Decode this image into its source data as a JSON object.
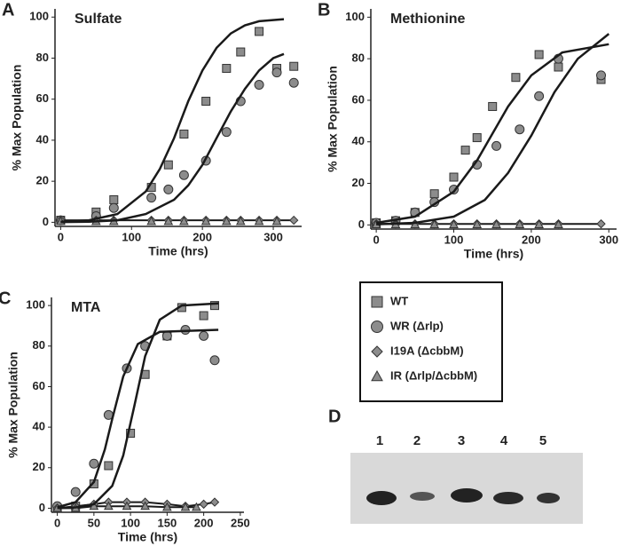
{
  "chart_data": [
    {
      "type": "scatter",
      "panel": "A",
      "title": "Sulfate",
      "xlabel": "Time (hrs)",
      "ylabel": "% Max Population",
      "xlim": [
        -8,
        340
      ],
      "ylim": [
        -2,
        104
      ],
      "xticks": [
        0,
        100,
        200,
        300
      ],
      "yticks": [
        0,
        20,
        40,
        60,
        80,
        100
      ],
      "series": [
        {
          "marker": "square",
          "x": [
            0,
            50,
            75,
            128,
            152,
            174,
            205,
            234,
            254,
            280,
            305,
            329
          ],
          "values": [
            1,
            5,
            11,
            17,
            28,
            43,
            59,
            75,
            83,
            93,
            75,
            76
          ]
        },
        {
          "marker": "circle",
          "x": [
            0,
            50,
            75,
            128,
            152,
            174,
            205,
            234,
            254,
            280,
            305,
            329
          ],
          "values": [
            1,
            3,
            7,
            12,
            16,
            23,
            30,
            44,
            59,
            67,
            73,
            68
          ]
        },
        {
          "marker": "diamond",
          "line": true,
          "x": [
            0,
            50,
            75,
            128,
            152,
            174,
            205,
            234,
            254,
            280,
            305,
            329
          ],
          "values": [
            1,
            1,
            1,
            1,
            1,
            1,
            1,
            1,
            1,
            1,
            1,
            1
          ]
        },
        {
          "marker": "triangle",
          "x": [
            0,
            50,
            75,
            128,
            152,
            174,
            205,
            234,
            254,
            280,
            305
          ],
          "values": [
            0.5,
            0.5,
            0.5,
            0.5,
            0.5,
            0.5,
            0.5,
            0.5,
            0.5,
            0.5,
            0.5
          ]
        },
        {
          "line": true,
          "x": [
            0,
            40,
            80,
            120,
            140,
            160,
            180,
            200,
            220,
            240,
            260,
            280,
            315
          ],
          "values": [
            0.3,
            1,
            4,
            15,
            26,
            41,
            59,
            74,
            85,
            92,
            96,
            98,
            99
          ]
        },
        {
          "line": true,
          "x": [
            0,
            40,
            80,
            120,
            160,
            180,
            200,
            220,
            240,
            260,
            280,
            300,
            315
          ],
          "values": [
            0.1,
            0.3,
            1,
            4,
            11,
            18,
            28,
            41,
            54,
            65,
            74,
            80,
            82
          ]
        }
      ]
    },
    {
      "type": "scatter",
      "panel": "B",
      "title": "Methionine",
      "xlabel": "Time (hrs)",
      "ylabel": "% Max Population",
      "xlim": [
        -7,
        310
      ],
      "ylim": [
        -2,
        104
      ],
      "xticks": [
        0,
        100,
        200,
        300
      ],
      "yticks": [
        0,
        20,
        40,
        60,
        80,
        100
      ],
      "series": [
        {
          "marker": "square",
          "x": [
            0,
            25,
            50,
            75,
            100,
            115,
            130,
            150,
            180,
            210,
            235,
            290
          ],
          "values": [
            1,
            2,
            6,
            15,
            23,
            36,
            42,
            57,
            71,
            82,
            76,
            70
          ]
        },
        {
          "marker": "circle",
          "x": [
            0,
            25,
            50,
            75,
            100,
            130,
            155,
            185,
            210,
            235,
            290
          ],
          "values": [
            1,
            2,
            6,
            11,
            17,
            29,
            38,
            46,
            62,
            80,
            72
          ]
        },
        {
          "marker": "diamond",
          "line": true,
          "x": [
            0,
            25,
            50,
            75,
            100,
            130,
            155,
            185,
            210,
            235,
            290
          ],
          "values": [
            0.5,
            0.5,
            0.5,
            0.5,
            0.5,
            0.5,
            0.5,
            0.5,
            0.5,
            0.5,
            0.5
          ]
        },
        {
          "marker": "triangle",
          "x": [
            0,
            25,
            50,
            75,
            100,
            130,
            155,
            185,
            210,
            235
          ],
          "values": [
            0.2,
            0.2,
            0.2,
            0.2,
            0.2,
            0.2,
            0.2,
            0.2,
            0.2,
            0.2
          ]
        },
        {
          "line": true,
          "x": [
            0,
            50,
            100,
            130,
            150,
            170,
            200,
            240,
            300
          ],
          "values": [
            1,
            4,
            16,
            31,
            44,
            57,
            72,
            83,
            87
          ]
        },
        {
          "line": true,
          "x": [
            0,
            50,
            100,
            140,
            170,
            200,
            230,
            260,
            300
          ],
          "values": [
            0.3,
            1,
            4,
            12,
            25,
            43,
            64,
            80,
            92
          ]
        }
      ]
    },
    {
      "type": "scatter",
      "panel": "C",
      "title": "MTA",
      "xlabel": "Time (hrs)",
      "ylabel": "% Max Population",
      "xlim": [
        -8,
        255
      ],
      "ylim": [
        -2,
        104
      ],
      "xticks": [
        0,
        50,
        100,
        150,
        200,
        250
      ],
      "yticks": [
        0,
        20,
        40,
        60,
        80,
        100
      ],
      "series": [
        {
          "marker": "square",
          "x": [
            0,
            25,
            50,
            70,
            100,
            120,
            150,
            170,
            200,
            215
          ],
          "values": [
            0,
            1,
            12,
            21,
            37,
            66,
            85,
            99,
            95,
            100
          ]
        },
        {
          "marker": "circle",
          "x": [
            0,
            25,
            50,
            70,
            95,
            120,
            150,
            175,
            200,
            215
          ],
          "values": [
            1,
            8,
            22,
            46,
            69,
            80,
            85,
            88,
            85,
            73
          ]
        },
        {
          "marker": "diamond",
          "line": true,
          "x": [
            0,
            25,
            50,
            70,
            95,
            120,
            150,
            175,
            200,
            215
          ],
          "values": [
            0,
            1,
            2,
            3,
            3,
            3,
            2,
            1,
            2,
            3
          ]
        },
        {
          "marker": "triangle",
          "line": true,
          "x": [
            0,
            25,
            50,
            70,
            95,
            120,
            150,
            175,
            190
          ],
          "values": [
            0,
            0,
            1,
            1,
            1,
            1,
            0.5,
            0.5,
            0.5
          ]
        },
        {
          "line": true,
          "x": [
            0,
            25,
            50,
            75,
            90,
            105,
            120,
            140,
            170,
            220
          ],
          "values": [
            0.1,
            0.4,
            2,
            11,
            26,
            50,
            75,
            93,
            100,
            101
          ]
        },
        {
          "line": true,
          "x": [
            0,
            25,
            50,
            65,
            75,
            90,
            110,
            140,
            220
          ],
          "values": [
            0.5,
            3,
            13,
            29,
            44,
            65,
            81,
            87,
            88
          ]
        }
      ]
    }
  ],
  "legend": [
    {
      "label": "WT",
      "marker": "square"
    },
    {
      "label": "WR (Δrlp)",
      "marker": "circle"
    },
    {
      "label": "I19A (ΔcbbM)",
      "marker": "diamond"
    },
    {
      "label": "IR (Δrlp/ΔcbbM)",
      "marker": "triangle"
    }
  ],
  "gel": {
    "panel": "D",
    "lanes": [
      "1",
      "2",
      "3",
      "4",
      "5"
    ]
  }
}
